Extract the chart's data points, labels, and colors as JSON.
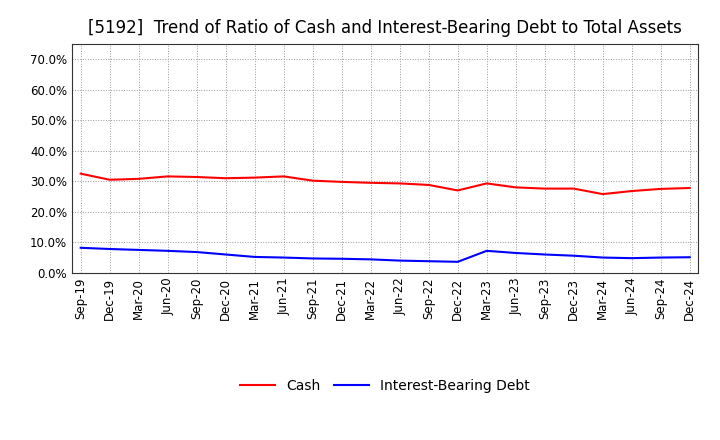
{
  "title": "[5192]  Trend of Ratio of Cash and Interest-Bearing Debt to Total Assets",
  "x_labels": [
    "Sep-19",
    "Dec-19",
    "Mar-20",
    "Jun-20",
    "Sep-20",
    "Dec-20",
    "Mar-21",
    "Jun-21",
    "Sep-21",
    "Dec-21",
    "Mar-22",
    "Jun-22",
    "Sep-22",
    "Dec-22",
    "Mar-23",
    "Jun-23",
    "Sep-23",
    "Dec-23",
    "Mar-24",
    "Jun-24",
    "Sep-24",
    "Dec-24"
  ],
  "cash": [
    0.325,
    0.305,
    0.308,
    0.316,
    0.314,
    0.31,
    0.312,
    0.316,
    0.302,
    0.298,
    0.295,
    0.293,
    0.288,
    0.27,
    0.293,
    0.28,
    0.276,
    0.276,
    0.258,
    0.268,
    0.275,
    0.278
  ],
  "ibd": [
    0.082,
    0.078,
    0.075,
    0.072,
    0.068,
    0.06,
    0.052,
    0.05,
    0.047,
    0.046,
    0.044,
    0.04,
    0.038,
    0.036,
    0.072,
    0.065,
    0.06,
    0.056,
    0.05,
    0.048,
    0.05,
    0.051
  ],
  "cash_color": "#ff0000",
  "ibd_color": "#0000ff",
  "bg_color": "#ffffff",
  "plot_bg_color": "#ffffff",
  "ylim": [
    0.0,
    0.75
  ],
  "yticks": [
    0.0,
    0.1,
    0.2,
    0.3,
    0.4,
    0.5,
    0.6,
    0.7
  ],
  "legend_cash": "Cash",
  "legend_ibd": "Interest-Bearing Debt",
  "title_fontsize": 12,
  "axis_fontsize": 8.5,
  "legend_fontsize": 10
}
